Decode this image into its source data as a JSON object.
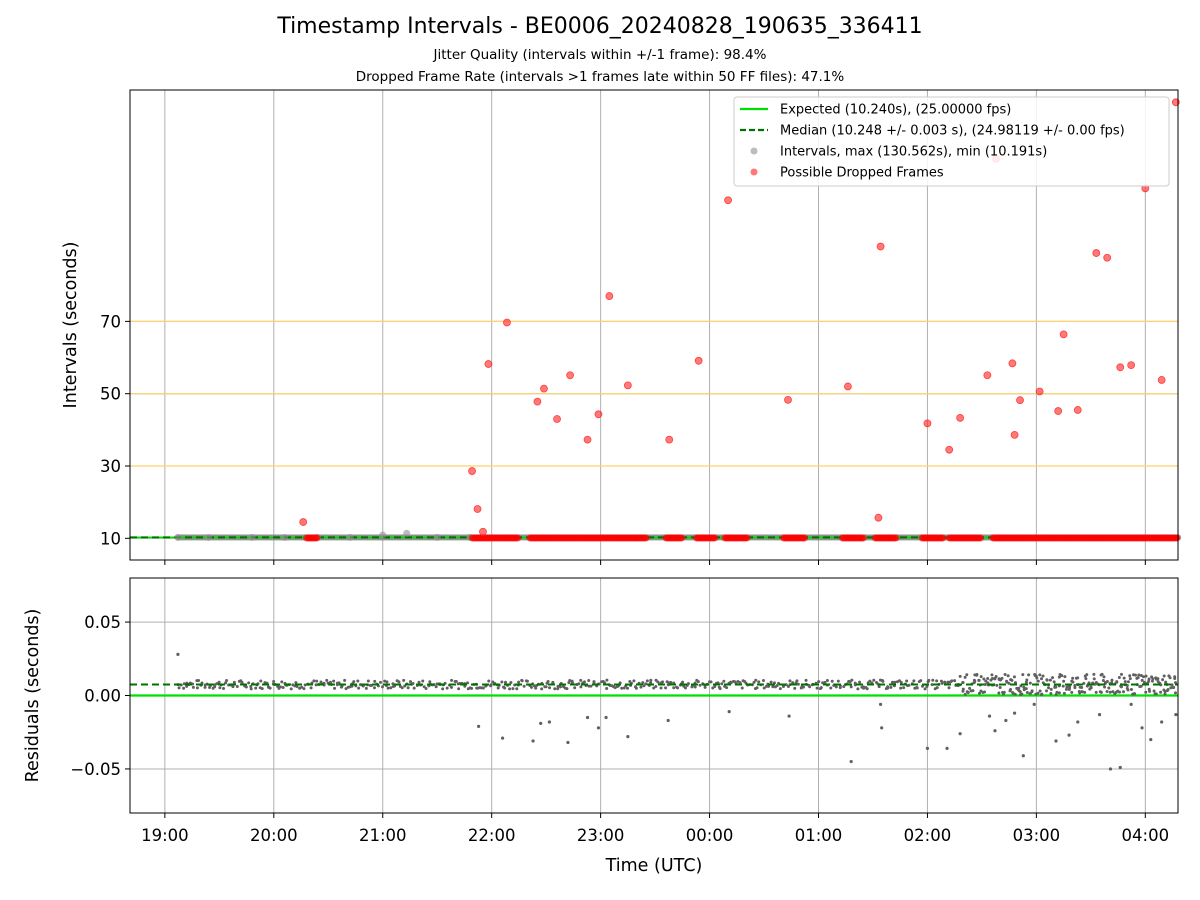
{
  "titles": {
    "main": "Timestamp Intervals - BE0006_20240828_190635_336411",
    "sub1": "Jitter Quality (intervals within +/-1 frame): 98.4%",
    "sub2": "Dropped Frame Rate (intervals >1 frames late within 50 FF files): 47.1%"
  },
  "chart_data": [
    {
      "type": "scatter",
      "panel": "intervals",
      "ylabel": "Intervals (seconds)",
      "xlabel": "",
      "x_ticks": [
        "19:00",
        "20:00",
        "21:00",
        "22:00",
        "23:00",
        "00:00",
        "01:00",
        "02:00",
        "03:00",
        "04:00"
      ],
      "y_ticks": [
        10,
        30,
        50,
        70
      ],
      "x_range_hours": [
        18.68,
        28.3
      ],
      "ylim": [
        4,
        134
      ],
      "threshold_lines": [
        30,
        50,
        70
      ],
      "threshold_color": "#ffd26b",
      "grid": true,
      "legend_position": "upper right",
      "legend": [
        "Expected (10.240s), (25.00000 fps)",
        "Median (10.248 +/- 0.003 s), (24.98119 +/- 0.00 fps)",
        "Intervals, max (130.562s), min (10.191s)",
        "Possible Dropped Frames"
      ],
      "series": [
        {
          "name": "Expected (10.240s), (25.00000 fps)",
          "kind": "hline",
          "y": 10.24,
          "color": "#00e000"
        },
        {
          "name": "Median (10.248 +/- 0.003 s), (24.98119 +/- 0.00 fps)",
          "kind": "hline-dashed",
          "y": 10.248,
          "color": "#007000"
        },
        {
          "name": "Intervals, max (130.562s), min (10.191s)",
          "kind": "points",
          "color": "#808080",
          "x_time": [
            19.12,
            19.4,
            19.8,
            20.1,
            20.4,
            20.7,
            21.0,
            21.22,
            21.5,
            21.8
          ],
          "y": [
            10.25,
            10.24,
            10.25,
            10.24,
            10.25,
            10.25,
            10.9,
            11.4,
            10.25,
            10.25
          ],
          "band_time": [
            19.12,
            28.3
          ],
          "band_y": 10.25
        },
        {
          "name": "Possible Dropped Frames",
          "kind": "points",
          "color": "#ff2020",
          "x_time": [
            20.27,
            21.82,
            21.87,
            21.92,
            21.97,
            22.14,
            22.42,
            22.48,
            22.6,
            22.72,
            22.88,
            22.98,
            23.08,
            23.25,
            23.63,
            23.9,
            24.17,
            24.72,
            25.27,
            25.57,
            26.0,
            26.2,
            26.3,
            26.55,
            26.63,
            26.78,
            26.8,
            26.85,
            27.03,
            27.2,
            27.25,
            27.38,
            27.55,
            27.65,
            27.77,
            27.87,
            28.0,
            28.15,
            28.28,
            25.55
          ],
          "y": [
            14.5,
            28.6,
            18.1,
            11.8,
            58.2,
            69.7,
            47.8,
            51.4,
            43,
            55.1,
            37.3,
            44.3,
            77,
            52.3,
            37.3,
            59.1,
            103.5,
            48.3,
            52,
            90.7,
            41.8,
            34.5,
            43.3,
            55.1,
            115,
            58.4,
            38.6,
            48.2,
            50.6,
            45.2,
            66.4,
            45.5,
            88.9,
            87.6,
            57.3,
            57.9,
            106.8,
            53.8,
            130.6,
            15.7
          ],
          "band_time": [
            [
              20.3,
              20.4
            ],
            [
              21.82,
              22.25
            ],
            [
              22.35,
              23.42
            ],
            [
              23.6,
              23.75
            ],
            [
              23.88,
              24.06
            ],
            [
              24.14,
              24.35
            ],
            [
              24.68,
              24.88
            ],
            [
              25.22,
              25.42
            ],
            [
              25.52,
              25.72
            ],
            [
              25.95,
              26.15
            ],
            [
              26.2,
              26.5
            ],
            [
              26.6,
              28.3
            ]
          ],
          "band_y": 10.1
        }
      ]
    },
    {
      "type": "scatter",
      "panel": "residuals",
      "ylabel": "Residuals (seconds)",
      "xlabel": "Time (UTC)",
      "x_ticks": [
        "19:00",
        "20:00",
        "21:00",
        "22:00",
        "23:00",
        "00:00",
        "01:00",
        "02:00",
        "03:00",
        "04:00"
      ],
      "y_ticks": [
        "0.05",
        "0.00",
        "−0.05"
      ],
      "ylim": [
        -0.08,
        0.08
      ],
      "grid": true,
      "series": [
        {
          "name": "Expected",
          "kind": "hline",
          "y": 0.0,
          "color": "#00e000"
        },
        {
          "name": "Median",
          "kind": "hline-dashed",
          "y": 0.0075,
          "color": "#007000"
        },
        {
          "name": "Residuals",
          "kind": "points",
          "color": "#707070",
          "x_time": [
            19.12,
            21.88,
            22.1,
            22.38,
            22.45,
            22.53,
            22.7,
            22.88,
            22.98,
            23.05,
            23.25,
            23.62,
            24.18,
            24.73,
            25.3,
            25.57,
            25.58,
            26.0,
            26.18,
            26.3,
            26.57,
            26.62,
            26.72,
            26.8,
            26.88,
            26.98,
            27.18,
            27.3,
            27.38,
            27.58,
            27.68,
            27.77,
            27.87,
            27.97,
            28.05,
            28.15,
            28.28
          ],
          "y": [
            0.028,
            -0.021,
            -0.029,
            -0.031,
            -0.019,
            -0.018,
            -0.032,
            -0.015,
            -0.022,
            -0.015,
            -0.028,
            -0.017,
            -0.011,
            -0.014,
            -0.045,
            -0.006,
            -0.022,
            -0.036,
            -0.036,
            -0.026,
            -0.014,
            -0.024,
            -0.017,
            -0.012,
            -0.041,
            -0.006,
            -0.031,
            -0.027,
            -0.018,
            -0.013,
            -0.05,
            -0.049,
            -0.006,
            -0.022,
            -0.03,
            -0.018,
            -0.013
          ],
          "band_time": [
            19.12,
            28.3
          ],
          "band_center": 0.0075
        }
      ]
    }
  ]
}
